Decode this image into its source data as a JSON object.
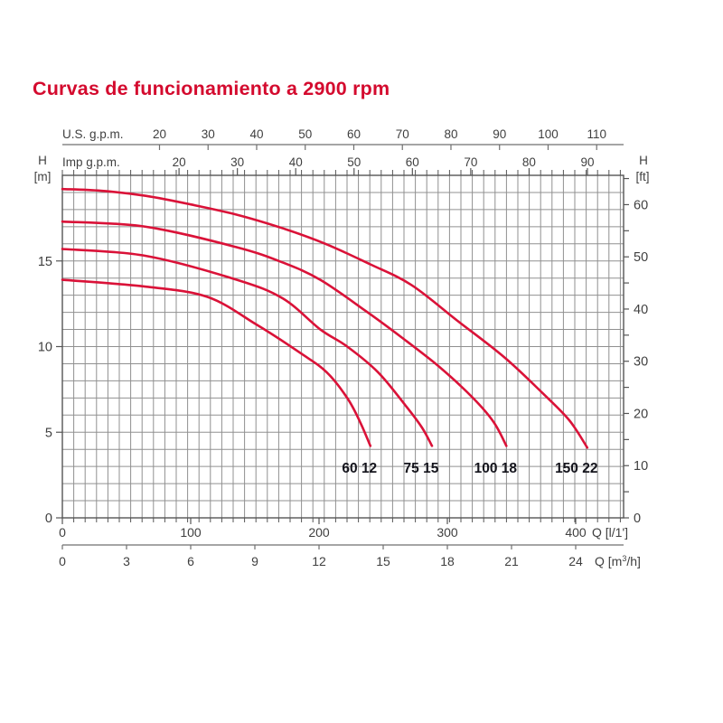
{
  "title": {
    "text": "Curvas de funcionamiento a 2900 rpm"
  },
  "colors": {
    "title": "#d40a2e",
    "curve": "#da1238",
    "grid": "#909090",
    "border": "#555555",
    "axis_line": "#6f6f6f",
    "axis_text": "#3f3f3f",
    "curve_label": "#14141c",
    "background": "#ffffff"
  },
  "chart_data": {
    "type": "line",
    "title": "Curvas de funcionamiento a 2900 rpm",
    "rpm": "2900",
    "grid": "on",
    "legend_position": "labels-at-curve-ends",
    "x_range_lmin": [
      0,
      437
    ],
    "y_range_m": [
      0,
      20
    ],
    "x_axes": [
      {
        "id": "us-gpm",
        "label": "U.S. g.p.m.",
        "position": "top-outer",
        "lmin_per_unit": 3.785,
        "ticks": [
          20,
          30,
          40,
          50,
          60,
          70,
          80,
          90,
          100,
          110
        ]
      },
      {
        "id": "imp-gpm",
        "label": "Imp g.p.m.",
        "position": "top-inner",
        "lmin_per_unit": 4.546,
        "ticks": [
          20,
          30,
          40,
          50,
          60,
          70,
          80,
          90
        ]
      },
      {
        "id": "l-min",
        "label": "Q [l/1']",
        "position": "bottom-inner",
        "lmin_per_unit": 1,
        "ticks": [
          0,
          100,
          200,
          300,
          400
        ]
      },
      {
        "id": "m3-h",
        "label": "Q [m³/h]",
        "position": "bottom-outer",
        "lmin_per_unit": 16.6667,
        "ticks": [
          0,
          3,
          6,
          9,
          12,
          15,
          18,
          21,
          24
        ],
        "label_parts": {
          "pre": "Q [m",
          "sup": "3",
          "post": "/h]"
        }
      }
    ],
    "y_axes": [
      {
        "id": "h-m",
        "label_lines": [
          "H",
          "[m]"
        ],
        "side": "left",
        "m_per_unit": 1,
        "ticks": [
          0,
          5,
          10,
          15
        ]
      },
      {
        "id": "h-ft",
        "label_lines": [
          "H",
          "[ft]"
        ],
        "side": "right",
        "m_per_unit": 0.3048,
        "ticks": [
          0,
          10,
          20,
          30,
          40,
          50,
          60
        ],
        "minor_step": 5,
        "minor_max": 65
      }
    ],
    "series": [
      {
        "name": "150 22",
        "points": [
          [
            0,
            19.2
          ],
          [
            30,
            19.1
          ],
          [
            65,
            18.8
          ],
          [
            100,
            18.3
          ],
          [
            136,
            17.7
          ],
          [
            172,
            16.9
          ],
          [
            205,
            16.0
          ],
          [
            240,
            14.8
          ],
          [
            272,
            13.6
          ],
          [
            308,
            11.5
          ],
          [
            344,
            9.4
          ],
          [
            374,
            7.3
          ],
          [
            395,
            5.7
          ],
          [
            409,
            4.1
          ]
        ]
      },
      {
        "name": "100 18",
        "points": [
          [
            0,
            17.3
          ],
          [
            65,
            17.0
          ],
          [
            136,
            15.8
          ],
          [
            172,
            14.9
          ],
          [
            201,
            13.9
          ],
          [
            236,
            12.1
          ],
          [
            265,
            10.5
          ],
          [
            294,
            8.8
          ],
          [
            320,
            7.0
          ],
          [
            336,
            5.6
          ],
          [
            346,
            4.2
          ]
        ]
      },
      {
        "name": "75 15",
        "points": [
          [
            0,
            15.7
          ],
          [
            65,
            15.3
          ],
          [
            136,
            13.9
          ],
          [
            172,
            12.8
          ],
          [
            201,
            11.0
          ],
          [
            222,
            10.0
          ],
          [
            246,
            8.5
          ],
          [
            267,
            6.6
          ],
          [
            280,
            5.3
          ],
          [
            288,
            4.2
          ]
        ]
      },
      {
        "name": "60 12",
        "points": [
          [
            0,
            13.9
          ],
          [
            65,
            13.5
          ],
          [
            113,
            12.9
          ],
          [
            151,
            11.3
          ],
          [
            186,
            9.6
          ],
          [
            206,
            8.5
          ],
          [
            222,
            7.0
          ],
          [
            232,
            5.6
          ],
          [
            240,
            4.2
          ]
        ]
      }
    ]
  }
}
